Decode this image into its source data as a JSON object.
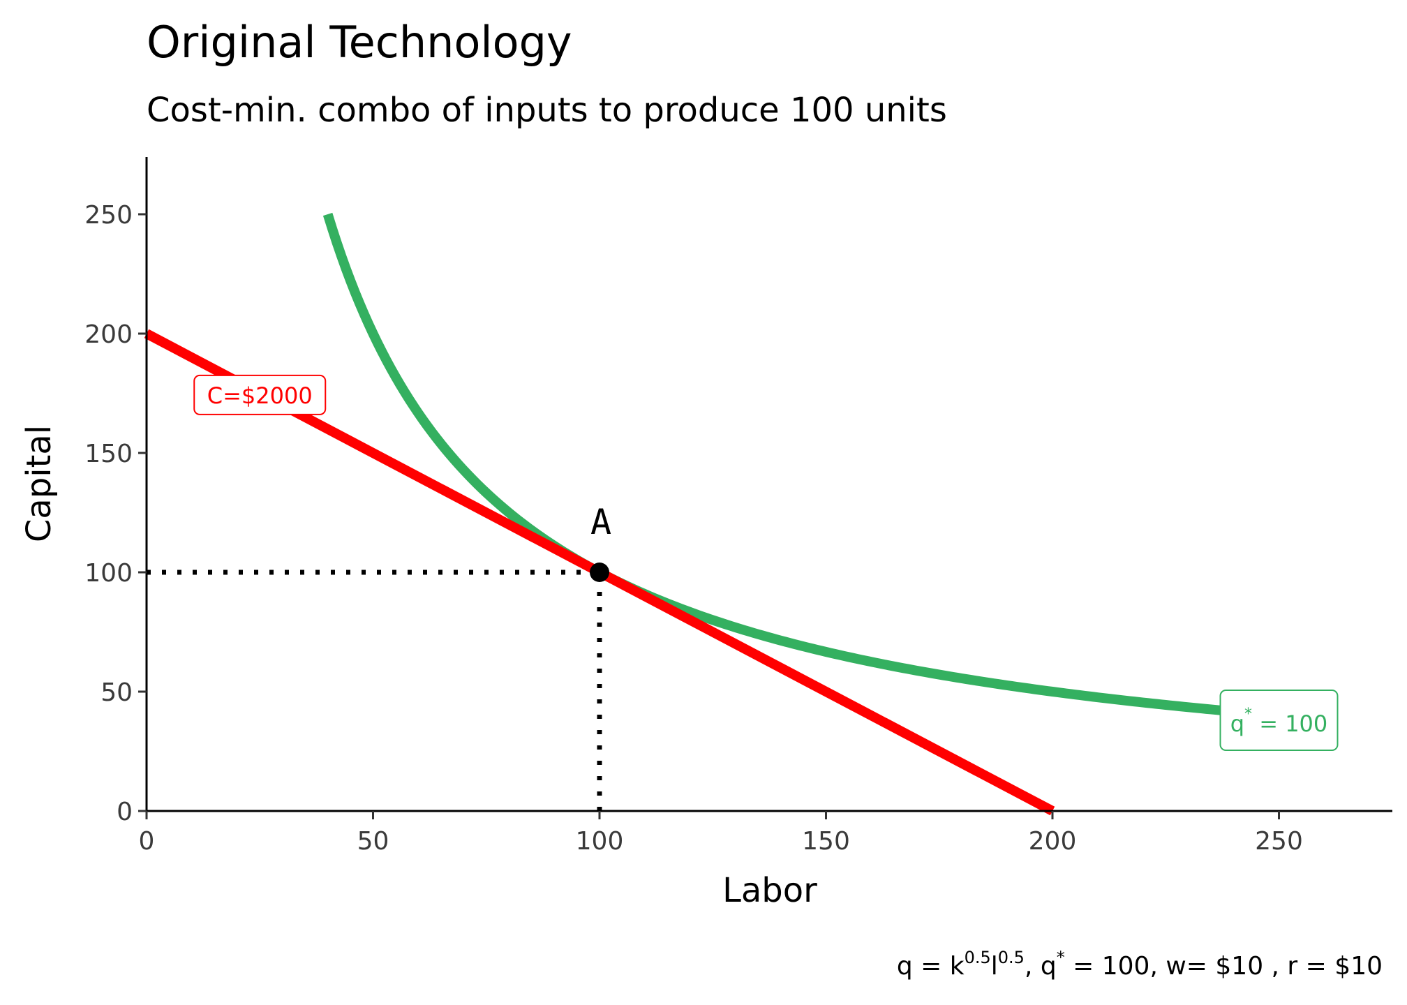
{
  "chart_data": {
    "type": "line",
    "title": "Original Technology",
    "subtitle": "Cost-min. combo of inputs to produce 100 units",
    "xlabel": "Labor",
    "ylabel": "Capital",
    "xlim": [
      0,
      275
    ],
    "ylim": [
      0,
      275
    ],
    "x_ticks": [
      0,
      50,
      100,
      150,
      200,
      250
    ],
    "y_ticks": [
      0,
      50,
      100,
      150,
      200,
      250
    ],
    "grid": false,
    "series": [
      {
        "name": "C=$2000",
        "kind": "isocost",
        "color": "#ff0000",
        "x": [
          0,
          200
        ],
        "y": [
          200,
          0
        ],
        "label": "C=$2000",
        "label_at": [
          25,
          174
        ]
      },
      {
        "name": "q* = 100",
        "kind": "isoquant",
        "color": "#34b060",
        "equation": "k = 10000 / l",
        "x": [
          40,
          45,
          50,
          55,
          60,
          65,
          70,
          75,
          80,
          85,
          90,
          95,
          100,
          110,
          120,
          130,
          140,
          150,
          160,
          170,
          180,
          190,
          200,
          210,
          220,
          230,
          240
        ],
        "y": [
          250,
          222.2,
          200,
          181.8,
          166.7,
          153.8,
          142.9,
          133.3,
          125,
          117.6,
          111.1,
          105.3,
          100,
          90.9,
          83.3,
          76.9,
          71.4,
          66.7,
          62.5,
          58.8,
          55.6,
          52.6,
          50,
          47.6,
          45.5,
          43.5,
          41.7
        ],
        "label_base": "q",
        "label_sup": "*",
        "label_rest": " = 100",
        "label_at": [
          250,
          38
        ]
      }
    ],
    "points": [
      {
        "label": "A",
        "x": 100,
        "y": 100
      }
    ],
    "guides": [
      {
        "from": [
          0,
          100
        ],
        "to": [
          100,
          100
        ],
        "style": "dotted"
      },
      {
        "from": [
          100,
          0
        ],
        "to": [
          100,
          100
        ],
        "style": "dotted"
      }
    ],
    "caption": {
      "q": "q = k",
      "exp1": "0.5",
      "l": "l",
      "exp2": "0.5",
      "qstar": ", q",
      "star": "*",
      "rest": " = 100, w= $10 , r = $10"
    }
  }
}
